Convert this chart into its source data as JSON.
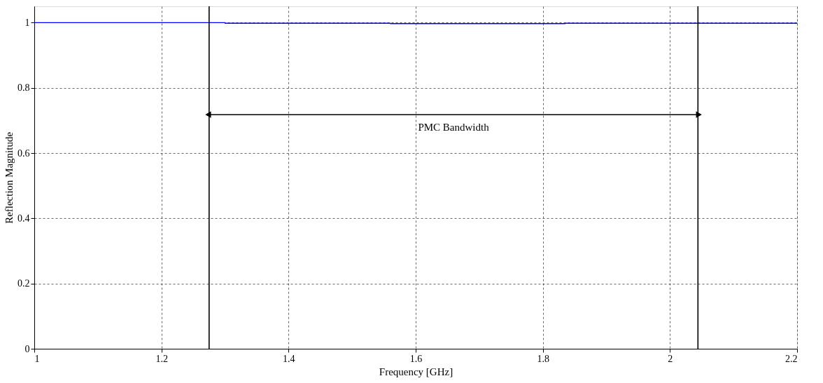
{
  "chart_data": {
    "type": "line",
    "xlabel": "Frequency [GHz]",
    "ylabel": "Reflection Magnitude",
    "x": [
      1,
      1.3,
      1.3,
      1.56,
      1.56,
      1.835,
      1.835,
      2.2
    ],
    "series": [
      {
        "color": "#0000ff",
        "values": [
          1.0,
          1.0,
          0.998,
          0.998,
          0.997,
          0.997,
          0.998,
          0.998
        ]
      }
    ],
    "xlim": [
      1,
      2.2
    ],
    "xticks": [
      1,
      1.2,
      1.4,
      1.6,
      1.8,
      2,
      2.2
    ],
    "ylim": [
      0,
      1.05
    ],
    "yticks": [
      0,
      0.2,
      0.4,
      0.6,
      0.8,
      1
    ],
    "grid": true,
    "ref_lines": [
      {
        "axis": "x",
        "value": 1.275,
        "color": "#000000"
      },
      {
        "axis": "x",
        "value": 2.044,
        "color": "#000000"
      }
    ],
    "annotations": [
      "PMC Bandwidth"
    ]
  }
}
